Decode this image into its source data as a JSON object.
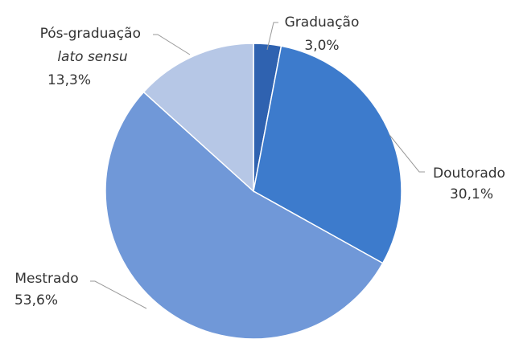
{
  "chart_data": {
    "type": "pie",
    "categories": [
      "Graduação",
      "Doutorado",
      "Mestrado",
      "Pós-graduação lato sensu"
    ],
    "values": [
      3.0,
      30.1,
      53.6,
      13.3
    ],
    "value_labels": [
      "3,0%",
      "30,1%",
      "53,6%",
      "13,3%"
    ],
    "colors": [
      "#2f62b0",
      "#3d7bcc",
      "#7098d8",
      "#b6c7e6"
    ]
  }
}
